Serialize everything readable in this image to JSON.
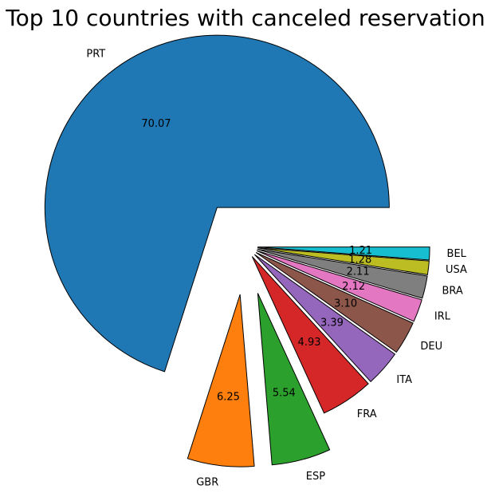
{
  "chart_data": {
    "type": "pie",
    "title": "Top 10 countries with canceled reservation",
    "categories": [
      "PRT",
      "GBR",
      "ESP",
      "FRA",
      "ITA",
      "DEU",
      "IRL",
      "BRA",
      "USA",
      "BEL"
    ],
    "values": [
      70.07,
      6.25,
      5.54,
      4.93,
      3.39,
      3.1,
      2.12,
      2.11,
      1.28,
      1.21
    ],
    "value_labels": [
      "70.07",
      "6.25",
      "5.54",
      "4.93",
      "3.39",
      "3.10",
      "2.12",
      "2.11",
      "1.28",
      "1.21"
    ],
    "exploded": [
      "PRT",
      "GBR",
      "ESP"
    ],
    "colors": [
      "#1f77b4",
      "#ff7f0e",
      "#2ca02c",
      "#d62728",
      "#9467bd",
      "#8c564b",
      "#e377c2",
      "#7f7f7f",
      "#bcbd22",
      "#17becf"
    ]
  }
}
